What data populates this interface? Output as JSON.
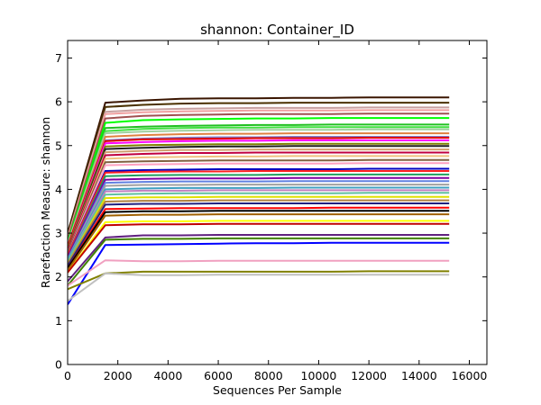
{
  "chart_data": {
    "type": "line",
    "title": "shannon: Container_ID",
    "xlabel": "Sequences Per Sample",
    "ylabel": "Rarefaction Measure: shannon",
    "xlim": [
      0,
      16700
    ],
    "ylim": [
      0,
      7.4
    ],
    "x_ticks": [
      0,
      2000,
      4000,
      6000,
      8000,
      10000,
      12000,
      14000,
      16000
    ],
    "y_ticks": [
      0,
      1,
      2,
      3,
      4,
      5,
      6,
      7
    ],
    "x_tick_labels": [
      "0",
      "2000",
      "4000",
      "6000",
      "8000",
      "10000",
      "12000",
      "14000",
      "16000"
    ],
    "y_tick_labels": [
      "0",
      "1",
      "2",
      "3",
      "4",
      "5",
      "6",
      "7"
    ],
    "grid": false,
    "legend": "none",
    "x": [
      0,
      1500,
      3000,
      4500,
      6000,
      7500,
      9000,
      10500,
      12000,
      13500,
      15200
    ],
    "series": [
      {
        "color": "#3a1500",
        "values": [
          3.0,
          5.98,
          6.03,
          6.07,
          6.08,
          6.08,
          6.09,
          6.09,
          6.1,
          6.1,
          6.1
        ]
      },
      {
        "color": "#4a3000",
        "values": [
          2.95,
          5.88,
          5.93,
          5.96,
          5.97,
          5.97,
          5.98,
          5.98,
          5.98,
          5.98,
          5.98
        ]
      },
      {
        "color": "#c8a0a0",
        "values": [
          2.9,
          5.77,
          5.82,
          5.84,
          5.85,
          5.86,
          5.86,
          5.86,
          5.87,
          5.87,
          5.87
        ]
      },
      {
        "color": "#f0a0a0",
        "values": [
          2.9,
          5.72,
          5.76,
          5.78,
          5.79,
          5.8,
          5.8,
          5.8,
          5.81,
          5.81,
          5.81
        ]
      },
      {
        "color": "#a05050",
        "values": [
          2.85,
          5.62,
          5.68,
          5.7,
          5.71,
          5.72,
          5.72,
          5.72,
          5.73,
          5.73,
          5.73
        ]
      },
      {
        "color": "#00ff00",
        "values": [
          2.8,
          5.52,
          5.58,
          5.6,
          5.61,
          5.62,
          5.62,
          5.63,
          5.63,
          5.63,
          5.63
        ]
      },
      {
        "color": "#20c020",
        "values": [
          2.8,
          5.4,
          5.43,
          5.45,
          5.46,
          5.47,
          5.47,
          5.48,
          5.48,
          5.48,
          5.48
        ]
      },
      {
        "color": "#40e040",
        "values": [
          2.75,
          5.33,
          5.38,
          5.4,
          5.41,
          5.41,
          5.42,
          5.42,
          5.42,
          5.42,
          5.42
        ]
      },
      {
        "color": "#a0d0a0",
        "values": [
          2.75,
          5.28,
          5.32,
          5.34,
          5.35,
          5.36,
          5.36,
          5.36,
          5.37,
          5.37,
          5.37
        ]
      },
      {
        "color": "#e08040",
        "values": [
          2.7,
          5.2,
          5.24,
          5.26,
          5.27,
          5.27,
          5.28,
          5.28,
          5.28,
          5.28,
          5.28
        ]
      },
      {
        "color": "#8080d0",
        "values": [
          2.7,
          5.12,
          5.16,
          5.18,
          5.19,
          5.19,
          5.2,
          5.2,
          5.2,
          5.2,
          5.2
        ]
      },
      {
        "color": "#e00000",
        "values": [
          2.7,
          5.1,
          5.14,
          5.15,
          5.16,
          5.17,
          5.17,
          5.17,
          5.18,
          5.18,
          5.18
        ]
      },
      {
        "color": "#ff00ff",
        "values": [
          2.65,
          5.05,
          5.08,
          5.1,
          5.11,
          5.11,
          5.12,
          5.12,
          5.12,
          5.12,
          5.12
        ]
      },
      {
        "color": "#808000",
        "values": [
          2.65,
          4.98,
          5.01,
          5.02,
          5.03,
          5.03,
          5.04,
          5.04,
          5.04,
          5.04,
          5.04
        ]
      },
      {
        "color": "#202020",
        "values": [
          2.6,
          4.92,
          4.95,
          4.97,
          4.98,
          4.98,
          4.99,
          4.99,
          4.99,
          4.99,
          4.99
        ]
      },
      {
        "color": "#d0a070",
        "values": [
          2.6,
          4.85,
          4.88,
          4.9,
          4.9,
          4.91,
          4.91,
          4.91,
          4.91,
          4.91,
          4.91
        ]
      },
      {
        "color": "#c00040",
        "values": [
          2.6,
          4.78,
          4.81,
          4.83,
          4.83,
          4.84,
          4.84,
          4.84,
          4.84,
          4.84,
          4.84
        ]
      },
      {
        "color": "#f0c080",
        "values": [
          2.55,
          4.7,
          4.73,
          4.74,
          4.75,
          4.75,
          4.76,
          4.76,
          4.76,
          4.76,
          4.76
        ]
      },
      {
        "color": "#806040",
        "values": [
          2.55,
          4.62,
          4.64,
          4.65,
          4.66,
          4.66,
          4.66,
          4.66,
          4.67,
          4.67,
          4.67
        ]
      },
      {
        "color": "#ffa0c0",
        "values": [
          2.5,
          4.55,
          4.57,
          4.58,
          4.59,
          4.59,
          4.59,
          4.59,
          4.6,
          4.6,
          4.6
        ]
      },
      {
        "color": "#0000c0",
        "values": [
          2.5,
          4.42,
          4.44,
          4.45,
          4.46,
          4.46,
          4.46,
          4.46,
          4.47,
          4.47,
          4.47
        ]
      },
      {
        "color": "#ff2020",
        "values": [
          2.5,
          4.38,
          4.4,
          4.41,
          4.41,
          4.42,
          4.42,
          4.42,
          4.42,
          4.42,
          4.42
        ]
      },
      {
        "color": "#20a060",
        "values": [
          2.45,
          4.3,
          4.32,
          4.33,
          4.33,
          4.33,
          4.34,
          4.34,
          4.34,
          4.34,
          4.34
        ]
      },
      {
        "color": "#8000a0",
        "values": [
          2.45,
          4.22,
          4.24,
          4.25,
          4.25,
          4.25,
          4.26,
          4.26,
          4.26,
          4.26,
          4.26
        ]
      },
      {
        "color": "#6080e0",
        "values": [
          2.4,
          4.15,
          4.17,
          4.18,
          4.18,
          4.18,
          4.19,
          4.19,
          4.19,
          4.19,
          4.19
        ]
      },
      {
        "color": "#a0a0a0",
        "values": [
          2.4,
          4.08,
          4.1,
          4.1,
          4.11,
          4.11,
          4.11,
          4.11,
          4.11,
          4.11,
          4.11
        ]
      },
      {
        "color": "#40a0c0",
        "values": [
          2.4,
          4.0,
          4.02,
          4.03,
          4.03,
          4.03,
          4.04,
          4.04,
          4.04,
          4.04,
          4.04
        ]
      },
      {
        "color": "#c080c0",
        "values": [
          2.35,
          3.95,
          3.97,
          3.97,
          3.98,
          3.98,
          3.98,
          3.98,
          3.98,
          3.98,
          3.98
        ]
      },
      {
        "color": "#60c0a0",
        "values": [
          2.35,
          3.88,
          3.9,
          3.91,
          3.91,
          3.91,
          3.91,
          3.91,
          3.92,
          3.92,
          3.92
        ]
      },
      {
        "color": "#e0e000",
        "values": [
          2.3,
          3.8,
          3.82,
          3.82,
          3.83,
          3.83,
          3.83,
          3.83,
          3.83,
          3.83,
          3.83
        ]
      },
      {
        "color": "#b08040",
        "values": [
          2.3,
          3.72,
          3.74,
          3.74,
          3.75,
          3.75,
          3.75,
          3.75,
          3.75,
          3.75,
          3.75
        ]
      },
      {
        "color": "#202080",
        "values": [
          2.25,
          3.65,
          3.67,
          3.67,
          3.68,
          3.68,
          3.68,
          3.68,
          3.68,
          3.68,
          3.68
        ]
      },
      {
        "color": "#ff0000",
        "values": [
          2.2,
          3.55,
          3.56,
          3.57,
          3.57,
          3.57,
          3.57,
          3.58,
          3.58,
          3.58,
          3.58
        ]
      },
      {
        "color": "#000000",
        "values": [
          2.2,
          3.48,
          3.5,
          3.5,
          3.51,
          3.51,
          3.51,
          3.51,
          3.51,
          3.51,
          3.51
        ]
      },
      {
        "color": "#a06000",
        "values": [
          2.15,
          3.4,
          3.42,
          3.42,
          3.43,
          3.43,
          3.43,
          3.43,
          3.43,
          3.43,
          3.43
        ]
      },
      {
        "color": "#ffff00",
        "values": [
          2.1,
          3.25,
          3.27,
          3.27,
          3.28,
          3.28,
          3.28,
          3.28,
          3.28,
          3.28,
          3.28
        ]
      },
      {
        "color": "#c00000",
        "values": [
          2.1,
          3.18,
          3.2,
          3.2,
          3.21,
          3.21,
          3.21,
          3.21,
          3.21,
          3.21,
          3.21
        ]
      },
      {
        "color": "#602080",
        "values": [
          1.9,
          2.9,
          2.95,
          2.95,
          2.96,
          2.96,
          2.96,
          2.96,
          2.96,
          2.96,
          2.96
        ]
      },
      {
        "color": "#408000",
        "values": [
          1.8,
          2.85,
          2.87,
          2.87,
          2.88,
          2.88,
          2.88,
          2.88,
          2.88,
          2.88,
          2.88
        ]
      },
      {
        "color": "#0000ff",
        "values": [
          1.37,
          2.73,
          2.74,
          2.75,
          2.76,
          2.77,
          2.77,
          2.78,
          2.78,
          2.78,
          2.78
        ]
      },
      {
        "color": "#f0a0c0",
        "values": [
          1.8,
          2.38,
          2.36,
          2.36,
          2.37,
          2.37,
          2.37,
          2.37,
          2.37,
          2.37,
          2.37
        ]
      },
      {
        "color": "#808000",
        "values": [
          1.72,
          2.08,
          2.12,
          2.12,
          2.12,
          2.12,
          2.12,
          2.12,
          2.13,
          2.13,
          2.13
        ]
      },
      {
        "color": "#c0c0c0",
        "values": [
          1.45,
          2.08,
          2.04,
          2.04,
          2.05,
          2.05,
          2.05,
          2.05,
          2.05,
          2.05,
          2.05
        ]
      }
    ]
  }
}
